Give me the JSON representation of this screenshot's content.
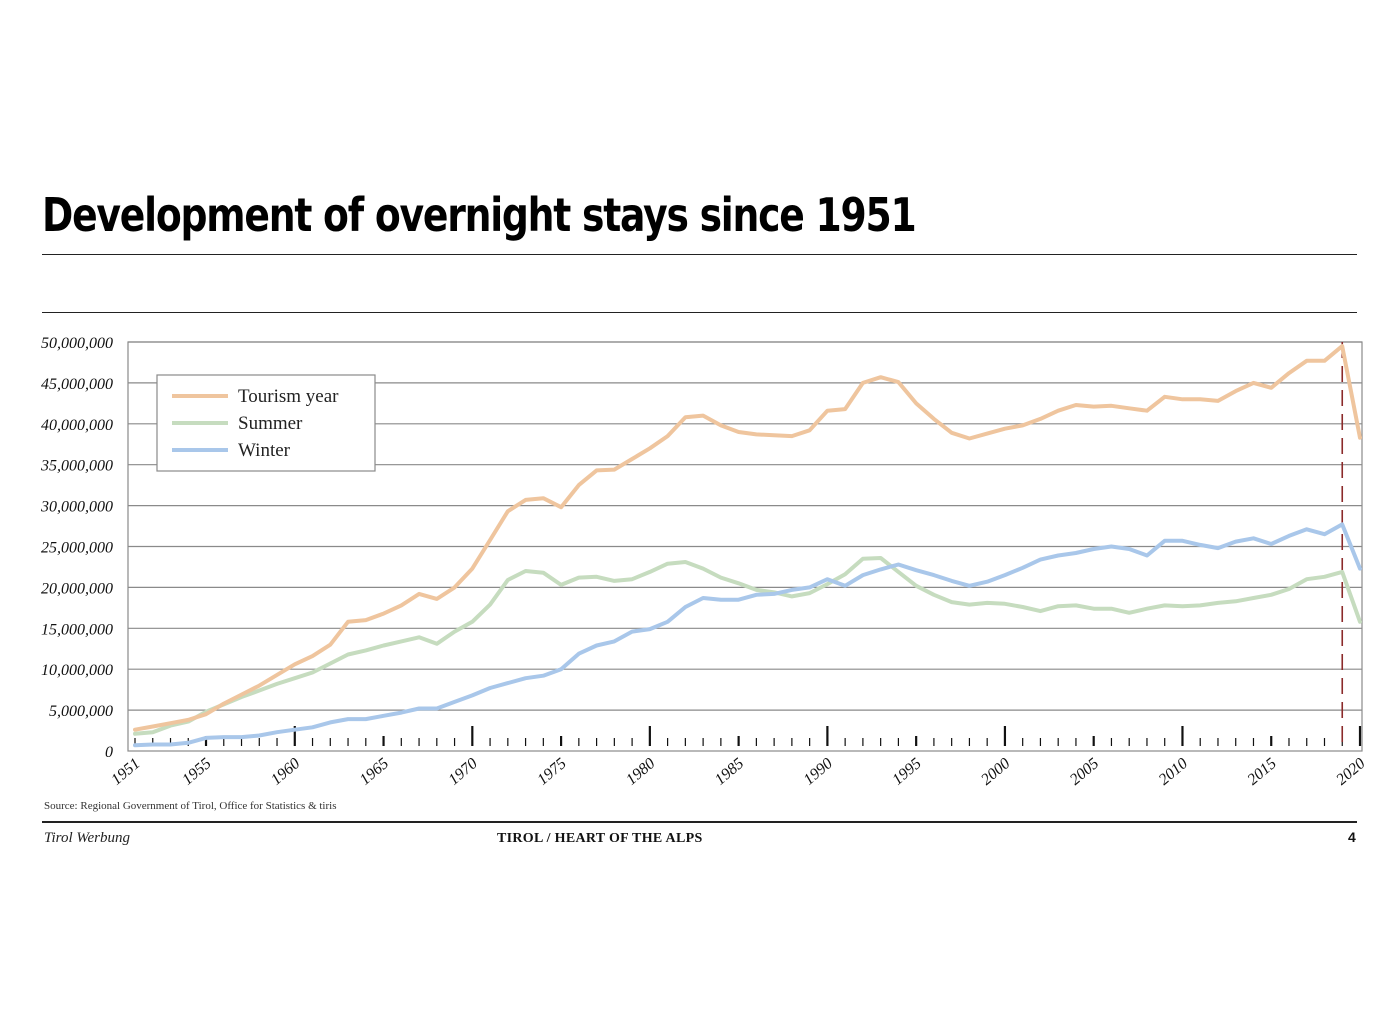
{
  "header": {
    "title": "Development of overnight stays since 1951"
  },
  "footer": {
    "source": "Source: Regional Government of Tirol, Office for Statistics & tiris",
    "left": "Tirol Werbung",
    "center": "TIROL / HEART OF THE ALPS",
    "page": "4"
  },
  "colors": {
    "tourism": "#efc59e",
    "summer": "#c6dcbf",
    "winter": "#a9c7ea",
    "marker": "#8b2a2a"
  },
  "chart_data": {
    "type": "line",
    "title": "Development of overnight stays since 1951",
    "xlabel": "",
    "ylabel": "",
    "xlim": [
      1951,
      2020
    ],
    "ylim": [
      0,
      50000000
    ],
    "y_ticks": [
      0,
      5000000,
      10000000,
      15000000,
      20000000,
      25000000,
      30000000,
      35000000,
      40000000,
      45000000,
      50000000
    ],
    "y_tick_labels": [
      "0",
      "5,000,000",
      "10,000,000",
      "15,000,000",
      "20,000,000",
      "25,000,000",
      "30,000,000",
      "35,000,000",
      "40,000,000",
      "45,000,000",
      "50,000,000"
    ],
    "x_tick_labels": [
      "1951",
      "1955",
      "1960",
      "1965",
      "1970",
      "1975",
      "1980",
      "1985",
      "1990",
      "1995",
      "2000",
      "2005",
      "2010",
      "2015",
      "2020"
    ],
    "legend_position": "top-left",
    "grid": "horizontal",
    "reference_line_x": 2019,
    "x": [
      1951,
      1952,
      1953,
      1954,
      1955,
      1956,
      1957,
      1958,
      1959,
      1960,
      1961,
      1962,
      1963,
      1964,
      1965,
      1966,
      1967,
      1968,
      1969,
      1970,
      1971,
      1972,
      1973,
      1974,
      1975,
      1976,
      1977,
      1978,
      1979,
      1980,
      1981,
      1982,
      1983,
      1984,
      1985,
      1986,
      1987,
      1988,
      1989,
      1990,
      1991,
      1992,
      1993,
      1994,
      1995,
      1996,
      1997,
      1998,
      1999,
      2000,
      2001,
      2002,
      2003,
      2004,
      2005,
      2006,
      2007,
      2008,
      2009,
      2010,
      2011,
      2012,
      2013,
      2014,
      2015,
      2016,
      2017,
      2018,
      2019,
      2020
    ],
    "series": [
      {
        "name": "Tourism year",
        "color": "#efc59e",
        "values": [
          2600000,
          3000000,
          3400000,
          3800000,
          4500000,
          5800000,
          6900000,
          8000000,
          9300000,
          10600000,
          11600000,
          13000000,
          15800000,
          16000000,
          16800000,
          17800000,
          19200000,
          18600000,
          20000000,
          22300000,
          25800000,
          29300000,
          30700000,
          30900000,
          29800000,
          32500000,
          34300000,
          34400000,
          35700000,
          37000000,
          38500000,
          40800000,
          41000000,
          39800000,
          39000000,
          38700000,
          38600000,
          38500000,
          39200000,
          41600000,
          41800000,
          45000000,
          45700000,
          45100000,
          42500000,
          40600000,
          38900000,
          38200000,
          38800000,
          39400000,
          39800000,
          40600000,
          41600000,
          42300000,
          42100000,
          42200000,
          41900000,
          41600000,
          43300000,
          43000000,
          43000000,
          42800000,
          44000000,
          45000000,
          44400000,
          46200000,
          47700000,
          47700000,
          49500000,
          38300000
        ]
      },
      {
        "name": "Summer",
        "color": "#c6dcbf",
        "values": [
          2100000,
          2300000,
          3100000,
          3600000,
          4800000,
          5700000,
          6600000,
          7400000,
          8200000,
          8900000,
          9600000,
          10700000,
          11800000,
          12300000,
          12900000,
          13400000,
          13900000,
          13100000,
          14600000,
          15800000,
          17900000,
          20900000,
          22000000,
          21800000,
          20300000,
          21200000,
          21300000,
          20800000,
          21000000,
          21900000,
          22900000,
          23100000,
          22300000,
          21200000,
          20500000,
          19700000,
          19400000,
          18900000,
          19300000,
          20400000,
          21600000,
          23500000,
          23600000,
          21900000,
          20200000,
          19100000,
          18200000,
          17900000,
          18100000,
          18000000,
          17600000,
          17100000,
          17700000,
          17800000,
          17400000,
          17400000,
          16900000,
          17400000,
          17800000,
          17700000,
          17800000,
          18100000,
          18300000,
          18700000,
          19100000,
          19800000,
          21000000,
          21300000,
          21900000,
          15800000
        ]
      },
      {
        "name": "Winter",
        "color": "#a9c7ea",
        "values": [
          700000,
          800000,
          800000,
          1000000,
          1600000,
          1700000,
          1700000,
          1900000,
          2300000,
          2600000,
          2900000,
          3500000,
          3900000,
          3900000,
          4300000,
          4700000,
          5200000,
          5200000,
          6000000,
          6800000,
          7700000,
          8300000,
          8900000,
          9200000,
          10000000,
          11900000,
          12900000,
          13400000,
          14600000,
          14900000,
          15800000,
          17600000,
          18700000,
          18500000,
          18500000,
          19100000,
          19200000,
          19700000,
          20000000,
          21000000,
          20200000,
          21500000,
          22200000,
          22800000,
          22100000,
          21500000,
          20800000,
          20200000,
          20700000,
          21500000,
          22400000,
          23400000,
          23900000,
          24200000,
          24700000,
          25000000,
          24700000,
          23900000,
          25700000,
          25700000,
          25200000,
          24800000,
          25600000,
          26000000,
          25300000,
          26300000,
          27100000,
          26500000,
          27700000,
          22300000
        ]
      }
    ]
  }
}
